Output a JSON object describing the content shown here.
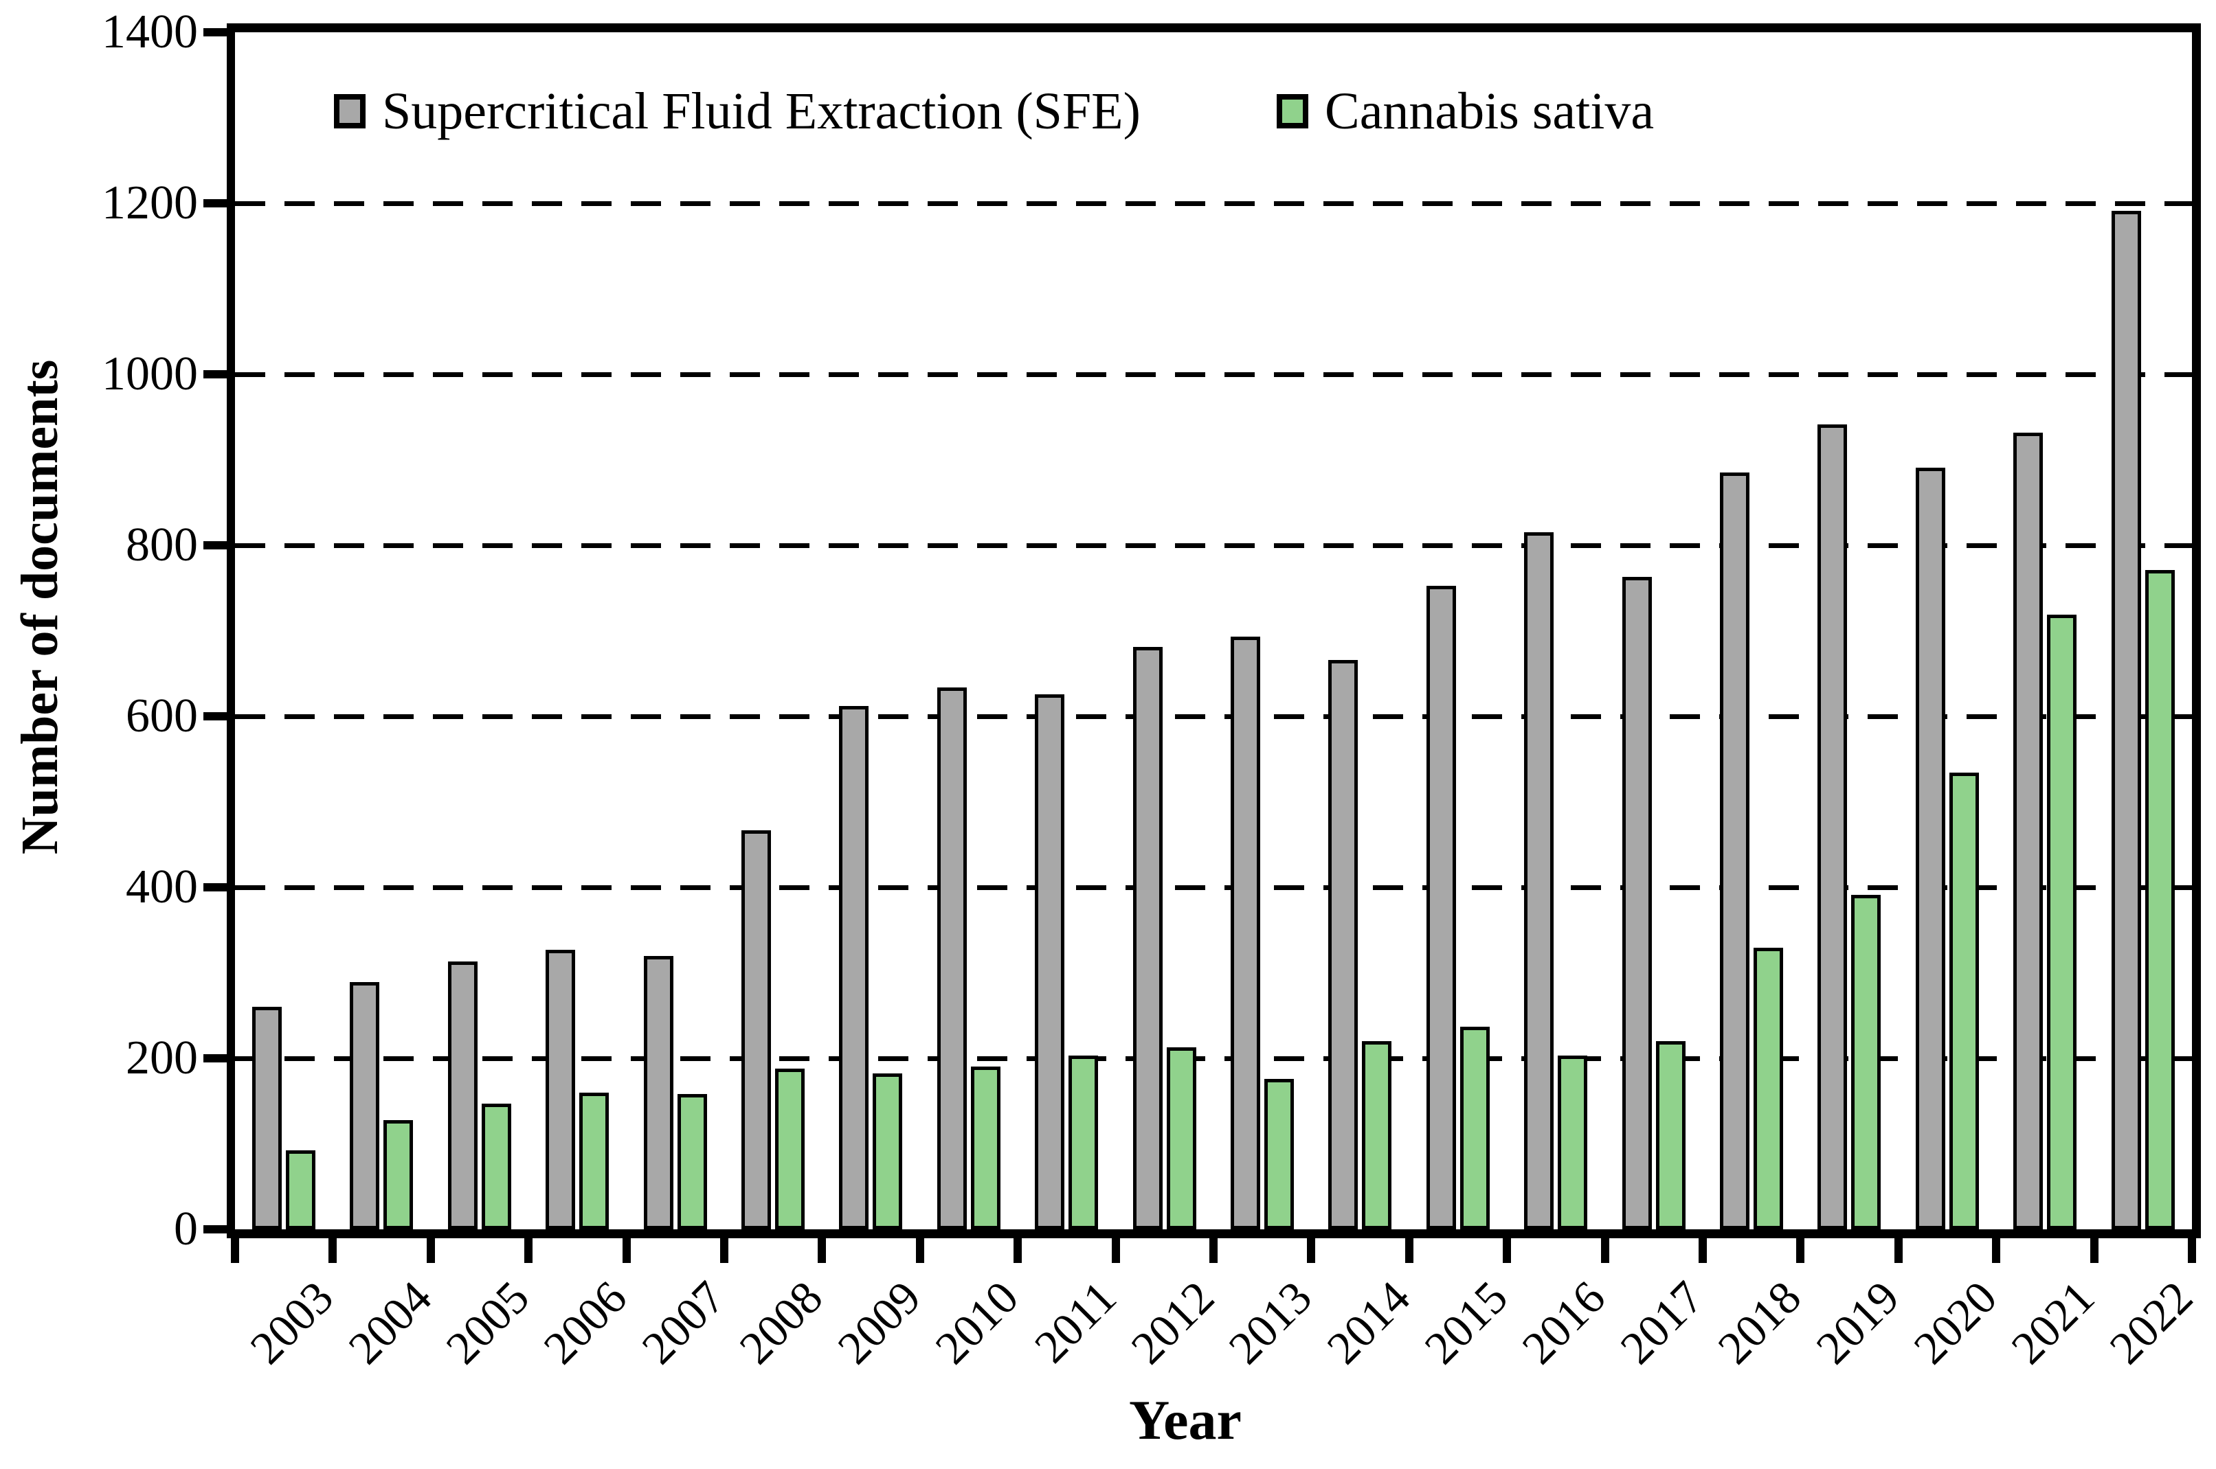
{
  "chart_data": {
    "type": "bar",
    "title": "",
    "xlabel": "Year",
    "ylabel": "Number of documents",
    "ylim": [
      0,
      1400
    ],
    "ytick_step": 200,
    "yticks": [
      0,
      200,
      400,
      600,
      800,
      1000,
      1200,
      1400
    ],
    "grid": "horizontal dashed lines at 200..1200",
    "legend_position": "top inside plot",
    "categories": [
      "2003",
      "2004",
      "2005",
      "2006",
      "2007",
      "2008",
      "2009",
      "2010",
      "2011",
      "2012",
      "2013",
      "2014",
      "2015",
      "2016",
      "2017",
      "2018",
      "2019",
      "2020",
      "2021",
      "2022"
    ],
    "series": [
      {
        "name": "Supercritical Fluid Extraction (SFE)",
        "color": "#A8A8A8",
        "values": [
          260,
          289,
          313,
          327,
          320,
          467,
          612,
          634,
          626,
          681,
          693,
          666,
          753,
          815,
          763,
          885,
          941,
          891,
          932,
          1191
        ]
      },
      {
        "name": "Cannabis sativa",
        "color": "#90D28C",
        "values": [
          92,
          128,
          147,
          160,
          158,
          188,
          182,
          190,
          203,
          213,
          176,
          220,
          237,
          203,
          220,
          329,
          391,
          534,
          719,
          771
        ]
      }
    ]
  }
}
